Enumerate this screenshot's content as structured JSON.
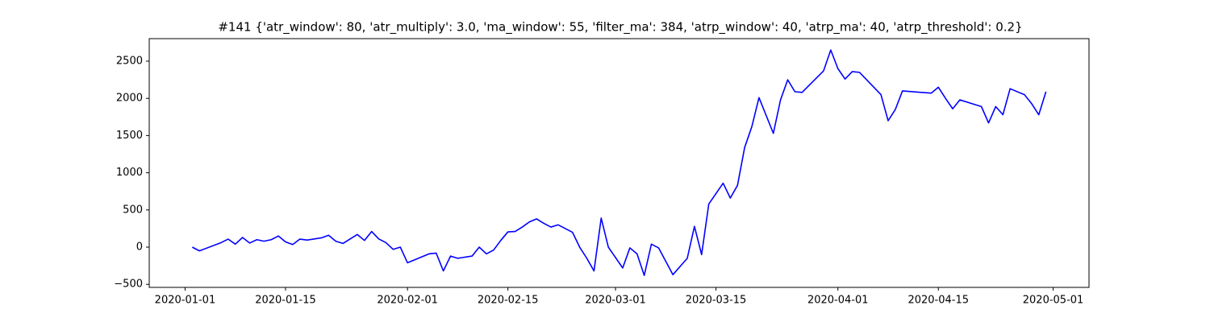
{
  "chart_data": {
    "type": "line",
    "title": "#141 {'atr_window': 80, 'atr_multiply': 3.0, 'ma_window': 55, 'filter_ma': 384, 'atrp_window': 40, 'atrp_ma': 40, 'atrp_threshold': 0.2}",
    "color": "#0000ff",
    "x": [
      "2020-01-02",
      "2020-01-03",
      "2020-01-06",
      "2020-01-07",
      "2020-01-08",
      "2020-01-09",
      "2020-01-10",
      "2020-01-11",
      "2020-01-12",
      "2020-01-13",
      "2020-01-14",
      "2020-01-15",
      "2020-01-16",
      "2020-01-17",
      "2020-01-18",
      "2020-01-20",
      "2020-01-21",
      "2020-01-22",
      "2020-01-23",
      "2020-01-25",
      "2020-01-26",
      "2020-01-27",
      "2020-01-28",
      "2020-01-29",
      "2020-01-30",
      "2020-01-31",
      "2020-02-01",
      "2020-02-04",
      "2020-02-05",
      "2020-02-06",
      "2020-02-07",
      "2020-02-08",
      "2020-02-10",
      "2020-02-11",
      "2020-02-12",
      "2020-02-13",
      "2020-02-14",
      "2020-02-15",
      "2020-02-16",
      "2020-02-17",
      "2020-02-18",
      "2020-02-19",
      "2020-02-20",
      "2020-02-21",
      "2020-02-22",
      "2020-02-24",
      "2020-02-25",
      "2020-02-26",
      "2020-02-27",
      "2020-02-28",
      "2020-02-29",
      "2020-03-02",
      "2020-03-03",
      "2020-03-04",
      "2020-03-05",
      "2020-03-06",
      "2020-03-07",
      "2020-03-09",
      "2020-03-11",
      "2020-03-12",
      "2020-03-13",
      "2020-03-14",
      "2020-03-16",
      "2020-03-17",
      "2020-03-18",
      "2020-03-19",
      "2020-03-20",
      "2020-03-21",
      "2020-03-23",
      "2020-03-24",
      "2020-03-25",
      "2020-03-26",
      "2020-03-27",
      "2020-03-30",
      "2020-03-31",
      "2020-04-01",
      "2020-04-02",
      "2020-04-03",
      "2020-04-04",
      "2020-04-06",
      "2020-04-07",
      "2020-04-08",
      "2020-04-09",
      "2020-04-10",
      "2020-04-14",
      "2020-04-15",
      "2020-04-16",
      "2020-04-17",
      "2020-04-18",
      "2020-04-21",
      "2020-04-22",
      "2020-04-23",
      "2020-04-24",
      "2020-04-25",
      "2020-04-27",
      "2020-04-28",
      "2020-04-29",
      "2020-04-30"
    ],
    "values": [
      0,
      -50,
      60,
      108,
      40,
      130,
      55,
      100,
      80,
      100,
      150,
      70,
      35,
      108,
      95,
      125,
      160,
      80,
      50,
      170,
      90,
      210,
      110,
      60,
      -30,
      0,
      -210,
      -90,
      -80,
      -320,
      -120,
      -150,
      -120,
      0,
      -90,
      -40,
      90,
      205,
      210,
      270,
      340,
      380,
      320,
      270,
      300,
      200,
      0,
      -150,
      -320,
      390,
      0,
      -280,
      -10,
      -90,
      -380,
      40,
      -10,
      -370,
      -150,
      280,
      -100,
      580,
      860,
      660,
      830,
      1340,
      1620,
      2010,
      1530,
      1980,
      2250,
      2090,
      2080,
      2370,
      2650,
      2400,
      2260,
      2360,
      2350,
      2150,
      2050,
      1700,
      1850,
      2100,
      2070,
      2150,
      2000,
      1860,
      1980,
      1890,
      1670,
      1890,
      1780,
      2130,
      2050,
      1930,
      1780,
      2090
    ],
    "xlim": [
      "2019-12-27",
      "2020-05-06"
    ],
    "xticks": [
      "2020-01-01",
      "2020-01-15",
      "2020-02-01",
      "2020-02-15",
      "2020-03-01",
      "2020-03-15",
      "2020-04-01",
      "2020-04-15",
      "2020-05-01"
    ],
    "ylim": [
      -541,
      2803
    ],
    "yticks": [
      {
        "value": -500,
        "label": "−500"
      },
      0,
      500,
      1000,
      1500,
      2000,
      2500
    ]
  }
}
